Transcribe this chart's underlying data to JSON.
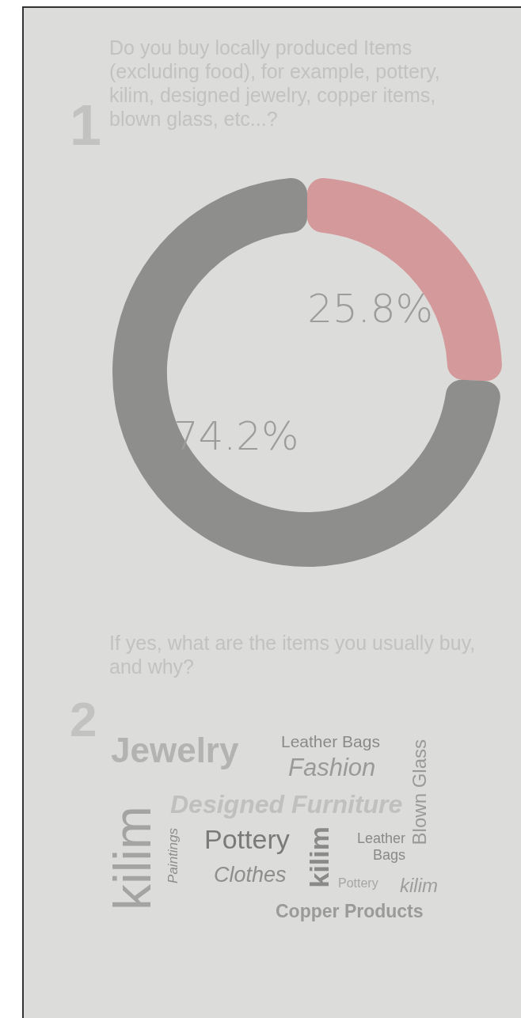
{
  "chart_data": [
    {
      "type": "donut",
      "title": "Do you buy locally produced Items (excluding food), for example, pottery, kilim, designed jewelry, copper items, blown glass, etc...?",
      "annotations": [
        "1"
      ],
      "categories": [
        null,
        null
      ],
      "values": [
        25.8,
        74.2
      ],
      "colors": [
        "#d4999a",
        "#8e8e8c"
      ],
      "value_labels": [
        "25.8%",
        "74.2%"
      ]
    },
    {
      "type": "other",
      "title": "If yes, what are the items you usually buy, and why?",
      "annotations": [
        "2",
        "Jewelry",
        "Leather Bags",
        "Fashion",
        "Blown Glass",
        "Designed Furniture",
        "kilim",
        "Paintings",
        "Pottery",
        "kilim",
        "Leather Bags",
        "Clothes",
        "Pottery",
        "kilim",
        "Copper Products"
      ]
    }
  ]
}
